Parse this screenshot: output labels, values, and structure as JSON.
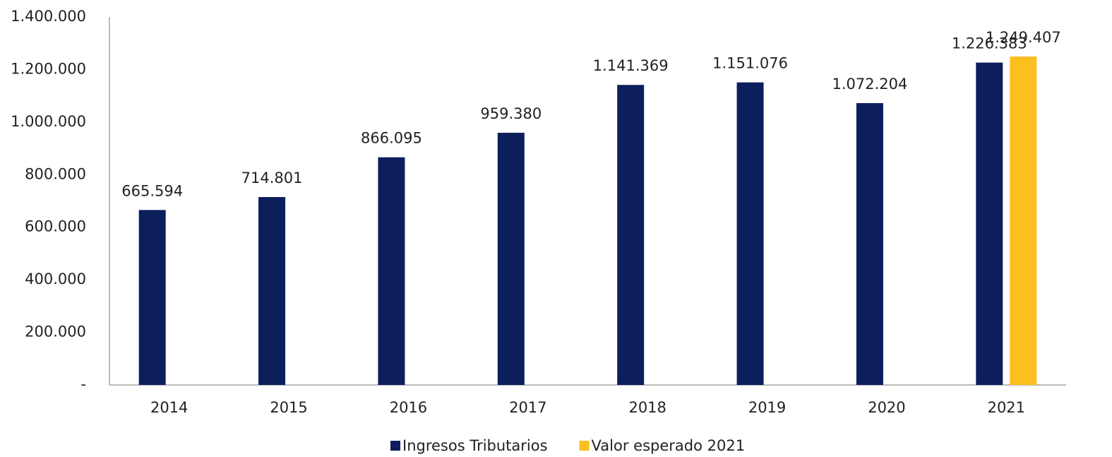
{
  "chart_data": {
    "type": "bar",
    "categories": [
      "2014",
      "2015",
      "2016",
      "2017",
      "2018",
      "2019",
      "2020",
      "2021"
    ],
    "series": [
      {
        "name": "Ingresos Tributarios",
        "color": "#0c1f5c",
        "values": [
          665594,
          714801,
          866095,
          959380,
          1141369,
          1151076,
          1072204,
          1226383
        ],
        "value_labels": [
          "665.594",
          "714.801",
          "866.095",
          "959.380",
          "1.141.369",
          "1.151.076",
          "1.072.204",
          "1.226.383"
        ]
      },
      {
        "name": "Valor esperado 2021",
        "color": "#fbbf20",
        "values": [
          null,
          null,
          null,
          null,
          null,
          null,
          null,
          1249407
        ],
        "value_labels": [
          null,
          null,
          null,
          null,
          null,
          null,
          null,
          "1.249.407"
        ]
      }
    ],
    "ylim": [
      0,
      1400000
    ],
    "yticks": [
      {
        "value": 0,
        "label": "-"
      },
      {
        "value": 200000,
        "label": "200.000"
      },
      {
        "value": 400000,
        "label": "400.000"
      },
      {
        "value": 600000,
        "label": "600.000"
      },
      {
        "value": 800000,
        "label": "800.000"
      },
      {
        "value": 1000000,
        "label": "1.000.000"
      },
      {
        "value": 1200000,
        "label": "1.200.000"
      },
      {
        "value": 1400000,
        "label": "1.400.000"
      }
    ],
    "grid": false,
    "legend": "bottom"
  }
}
